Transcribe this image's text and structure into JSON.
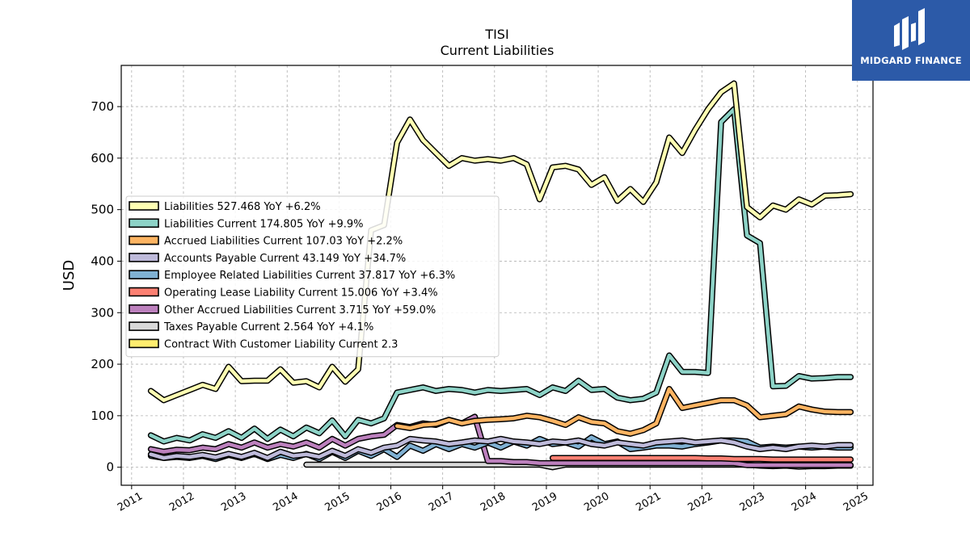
{
  "branding": {
    "logo_text": "MIDGARD FINANCE",
    "logo_bg": "#2c5aa8"
  },
  "chart_data": {
    "type": "line",
    "title": "TISI",
    "subtitle": "Current  Liabilities",
    "ylabel": "USD",
    "xlabel": "",
    "xlim": [
      2010.8,
      2025.3
    ],
    "ylim": [
      -35,
      780
    ],
    "yticks": [
      0,
      100,
      200,
      300,
      400,
      500,
      600,
      700
    ],
    "xticks": [
      "2011",
      "2012",
      "2013",
      "2014",
      "2015",
      "2016",
      "2017",
      "2018",
      "2019",
      "2020",
      "2021",
      "2022",
      "2023",
      "2024",
      "2025"
    ],
    "grid": true,
    "legend_position": "center-left",
    "series": [
      {
        "name": "Liabilities",
        "legend_label": "Liabilities  527.468 YoY +6.2%",
        "color": "#ffffb3",
        "x": [
          2011.37,
          2011.62,
          2011.87,
          2012.12,
          2012.37,
          2012.62,
          2012.87,
          2013.12,
          2013.37,
          2013.62,
          2013.87,
          2014.12,
          2014.37,
          2014.62,
          2014.87,
          2015.12,
          2015.37,
          2015.62,
          2015.87,
          2016.12,
          2016.37,
          2016.62,
          2016.87,
          2017.12,
          2017.37,
          2017.62,
          2017.87,
          2018.12,
          2018.37,
          2018.62,
          2018.87,
          2019.12,
          2019.37,
          2019.62,
          2019.87,
          2020.12,
          2020.37,
          2020.62,
          2020.87,
          2021.12,
          2021.37,
          2021.62,
          2021.87,
          2022.12,
          2022.37,
          2022.62,
          2022.87,
          2023.12,
          2023.37,
          2023.62,
          2023.87,
          2024.12,
          2024.37,
          2024.62,
          2024.87
        ],
        "values": [
          148,
          130,
          140,
          150,
          160,
          152,
          195,
          167,
          168,
          168,
          190,
          164,
          167,
          155,
          195,
          166,
          190,
          460,
          470,
          630,
          675,
          635,
          610,
          585,
          600,
          595,
          598,
          595,
          600,
          588,
          520,
          582,
          585,
          578,
          548,
          563,
          517,
          540,
          515,
          553,
          640,
          610,
          655,
          695,
          728,
          745,
          505,
          485,
          508,
          500,
          520,
          510,
          527,
          528,
          530
        ]
      },
      {
        "name": "Liabilities Current",
        "legend_label": "Liabilities Current  174.805 YoY +9.9%",
        "color": "#8dd3c7",
        "x": [
          2011.37,
          2011.62,
          2011.87,
          2012.12,
          2012.37,
          2012.62,
          2012.87,
          2013.12,
          2013.37,
          2013.62,
          2013.87,
          2014.12,
          2014.37,
          2014.62,
          2014.87,
          2015.12,
          2015.37,
          2015.62,
          2015.87,
          2016.12,
          2016.37,
          2016.62,
          2016.87,
          2017.12,
          2017.37,
          2017.62,
          2017.87,
          2018.12,
          2018.37,
          2018.62,
          2018.87,
          2019.12,
          2019.37,
          2019.62,
          2019.87,
          2020.12,
          2020.37,
          2020.62,
          2020.87,
          2021.12,
          2021.37,
          2021.62,
          2021.87,
          2022.12,
          2022.37,
          2022.62,
          2022.87,
          2023.12,
          2023.37,
          2023.62,
          2023.87,
          2024.12,
          2024.37,
          2024.62,
          2024.87
        ],
        "values": [
          62,
          50,
          57,
          52,
          64,
          57,
          70,
          57,
          75,
          55,
          73,
          60,
          77,
          66,
          91,
          60,
          92,
          85,
          95,
          145,
          150,
          155,
          148,
          152,
          150,
          145,
          150,
          148,
          150,
          152,
          140,
          155,
          148,
          168,
          150,
          152,
          135,
          130,
          133,
          145,
          217,
          185,
          185,
          183,
          670,
          695,
          450,
          435,
          157,
          158,
          177,
          172,
          173,
          175,
          175
        ]
      },
      {
        "name": "Accrued Liabilities Current",
        "legend_label": "Accrued Liabilities Current  107.03 YoY +2.2%",
        "color": "#fdb462",
        "x": [
          2016.12,
          2016.37,
          2016.62,
          2016.87,
          2017.12,
          2017.37,
          2017.62,
          2017.87,
          2018.12,
          2018.37,
          2018.62,
          2018.87,
          2019.12,
          2019.37,
          2019.62,
          2019.87,
          2020.12,
          2020.37,
          2020.62,
          2020.87,
          2021.12,
          2021.37,
          2021.62,
          2021.87,
          2022.12,
          2022.37,
          2022.62,
          2022.87,
          2023.12,
          2023.37,
          2023.62,
          2023.87,
          2024.12,
          2024.37,
          2024.62,
          2024.87
        ],
        "values": [
          80,
          76,
          82,
          84,
          92,
          85,
          90,
          92,
          93,
          95,
          100,
          97,
          90,
          82,
          97,
          88,
          85,
          70,
          65,
          72,
          85,
          152,
          115,
          120,
          125,
          130,
          130,
          120,
          97,
          100,
          103,
          118,
          112,
          108,
          107,
          107
        ]
      },
      {
        "name": "Accounts Payable Current",
        "legend_label": "Accounts Payable Current  43.149 YoY +34.7%",
        "color": "#bebada",
        "x": [
          2011.37,
          2011.62,
          2011.87,
          2012.12,
          2012.37,
          2012.62,
          2012.87,
          2013.12,
          2013.37,
          2013.62,
          2013.87,
          2014.12,
          2014.37,
          2014.62,
          2014.87,
          2015.12,
          2015.37,
          2015.62,
          2015.87,
          2016.12,
          2016.37,
          2016.62,
          2016.87,
          2017.12,
          2017.37,
          2017.62,
          2017.87,
          2018.12,
          2018.37,
          2018.62,
          2018.87,
          2019.12,
          2019.37,
          2019.62,
          2019.87,
          2020.12,
          2020.37,
          2020.62,
          2020.87,
          2021.12,
          2021.37,
          2021.62,
          2021.87,
          2022.12,
          2022.37,
          2022.62,
          2022.87,
          2023.12,
          2023.37,
          2023.62,
          2023.87,
          2024.12,
          2024.37,
          2024.62,
          2024.87
        ],
        "values": [
          25,
          18,
          22,
          20,
          24,
          19,
          26,
          20,
          28,
          18,
          30,
          22,
          25,
          20,
          32,
          22,
          35,
          28,
          38,
          42,
          55,
          52,
          50,
          45,
          48,
          52,
          50,
          55,
          50,
          48,
          45,
          50,
          48,
          52,
          45,
          42,
          48,
          45,
          42,
          48,
          50,
          52,
          48,
          50,
          52,
          48,
          40,
          35,
          38,
          35,
          40,
          42,
          40,
          43,
          43
        ]
      },
      {
        "name": "Employee Related Liabilities Current",
        "legend_label": "Employee Related Liabilities Current  37.817 YoY +6.3%",
        "color": "#80b1d3",
        "x": [
          2011.37,
          2011.62,
          2011.87,
          2012.12,
          2012.37,
          2012.62,
          2012.87,
          2013.12,
          2013.37,
          2013.62,
          2013.87,
          2014.12,
          2014.37,
          2014.62,
          2014.87,
          2015.12,
          2015.37,
          2015.62,
          2015.87,
          2016.12,
          2016.37,
          2016.62,
          2016.87,
          2017.12,
          2017.37,
          2017.62,
          2017.87,
          2018.12,
          2018.37,
          2018.62,
          2018.87,
          2019.12,
          2019.37,
          2019.62,
          2019.87,
          2020.12,
          2020.37,
          2020.62,
          2020.87,
          2021.12,
          2021.37,
          2021.62,
          2021.87,
          2022.12,
          2022.37,
          2022.62,
          2022.87,
          2023.12,
          2023.37,
          2023.62,
          2023.87,
          2024.12,
          2024.37,
          2024.62,
          2024.87
        ],
        "values": [
          22,
          18,
          20,
          18,
          22,
          16,
          24,
          18,
          26,
          16,
          24,
          18,
          26,
          16,
          30,
          18,
          32,
          22,
          35,
          20,
          42,
          32,
          45,
          35,
          45,
          38,
          48,
          38,
          50,
          42,
          55,
          45,
          48,
          40,
          58,
          45,
          50,
          35,
          38,
          42,
          42,
          40,
          45,
          48,
          52,
          52,
          50,
          38,
          40,
          38,
          40,
          38,
          40,
          38,
          38
        ]
      },
      {
        "name": "Operating Lease Liability Current",
        "legend_label": "Operating Lease Liability Current  15.006 YoY +3.4%",
        "color": "#fb8072",
        "x": [
          2019.12,
          2019.37,
          2019.62,
          2019.87,
          2020.12,
          2020.37,
          2020.62,
          2020.87,
          2021.12,
          2021.37,
          2021.62,
          2021.87,
          2022.12,
          2022.37,
          2022.62,
          2022.87,
          2023.12,
          2023.37,
          2023.62,
          2023.87,
          2024.12,
          2024.37,
          2024.62,
          2024.87
        ],
        "values": [
          18,
          18,
          18,
          18,
          18,
          18,
          18,
          18,
          18,
          18,
          18,
          18,
          17,
          17,
          16,
          16,
          16,
          15,
          15,
          15,
          15,
          15,
          15,
          15
        ]
      },
      {
        "name": "Other Accrued Liabilities Current",
        "legend_label": "Other Accrued Liabilities Current  3.715 YoY +59.0%",
        "color": "#bc80bd",
        "x": [
          2011.37,
          2011.62,
          2011.87,
          2012.12,
          2012.37,
          2012.62,
          2012.87,
          2013.12,
          2013.37,
          2013.62,
          2013.87,
          2014.12,
          2014.37,
          2014.62,
          2014.87,
          2015.12,
          2015.37,
          2015.62,
          2015.87,
          2016.12,
          2016.37,
          2016.62,
          2016.87,
          2017.12,
          2017.37,
          2017.62,
          2017.87,
          2018.12,
          2018.37,
          2018.62,
          2018.87,
          2019.12,
          2019.37,
          2019.62,
          2019.87,
          2020.12,
          2020.37,
          2020.62,
          2020.87,
          2021.12,
          2021.37,
          2021.62,
          2021.87,
          2022.12,
          2022.37,
          2022.62,
          2022.87,
          2023.12,
          2023.37,
          2023.62,
          2023.87,
          2024.12,
          2024.37,
          2024.62,
          2024.87
        ],
        "values": [
          35,
          30,
          34,
          33,
          38,
          35,
          45,
          38,
          48,
          38,
          45,
          40,
          48,
          38,
          55,
          42,
          55,
          60,
          63,
          82,
          78,
          85,
          82,
          92,
          85,
          98,
          12,
          12,
          10,
          10,
          8,
          8,
          8,
          8,
          8,
          8,
          8,
          8,
          8,
          8,
          8,
          8,
          8,
          8,
          8,
          8,
          4,
          4,
          4,
          4,
          4,
          4,
          4,
          4,
          4
        ]
      },
      {
        "name": "Taxes Payable Current",
        "legend_label": "Taxes Payable Current  2.564 YoY +4.1%",
        "color": "#d9d9d9",
        "x": [
          2014.37,
          2014.62,
          2014.87,
          2015.12,
          2015.37,
          2015.62,
          2015.87,
          2016.12,
          2016.37,
          2016.62,
          2016.87,
          2017.12,
          2017.37,
          2017.62,
          2017.87,
          2018.12,
          2018.37,
          2018.62,
          2018.87,
          2019.12,
          2019.37,
          2019.62,
          2019.87,
          2020.12,
          2020.37,
          2020.62,
          2020.87,
          2021.12,
          2021.37,
          2021.62,
          2021.87,
          2022.12,
          2022.37,
          2022.62,
          2022.87,
          2023.12,
          2023.37,
          2023.62,
          2023.87,
          2024.12,
          2024.37,
          2024.62,
          2024.87
        ],
        "values": [
          5,
          5,
          5,
          5,
          5,
          5,
          5,
          5,
          5,
          5,
          5,
          5,
          5,
          5,
          5,
          5,
          5,
          5,
          5,
          0,
          5,
          5,
          5,
          5,
          5,
          5,
          5,
          5,
          5,
          5,
          5,
          5,
          5,
          5,
          5,
          3,
          2,
          3,
          1,
          2,
          2,
          3,
          3
        ]
      },
      {
        "name": "Contract With Customer Liability Current",
        "legend_label": "Contract With Customer Liability Current  2.3",
        "color": "#ffed6f",
        "x": [
          2024.87
        ],
        "values": [
          2.3
        ]
      }
    ]
  }
}
